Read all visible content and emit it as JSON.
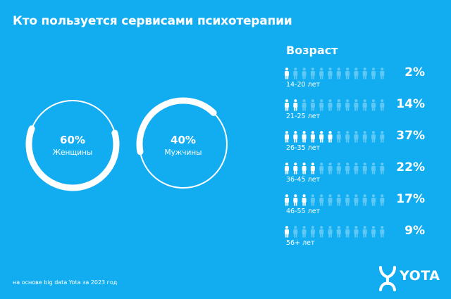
{
  "title": "Кто пользуется сервисами психотерапии",
  "colors": {
    "background": "#12adf0",
    "foreground": "#ffffff",
    "inactive_person": "#5fc8f5"
  },
  "footnote": "на основе big data Yota за 2023 год",
  "logo": {
    "text": "YOTA"
  },
  "age_title": "Возраст",
  "chart_data": [
    {
      "type": "pie",
      "categories": [
        "Женщины",
        "Мужчины"
      ],
      "values": [
        60,
        40
      ],
      "labels": [
        "60%",
        "40%"
      ]
    },
    {
      "type": "bar",
      "title": "Возраст",
      "categories": [
        "14-20 лет",
        "21-25 лет",
        "26-35 лет",
        "36-45 лет",
        "46-55 лет",
        "56+ лет"
      ],
      "values": [
        2,
        14,
        37,
        22,
        17,
        9
      ],
      "labels": [
        "2%",
        "14%",
        "37%",
        "22%",
        "17%",
        "9%"
      ],
      "highlighted_people_of_12": [
        1,
        2,
        6,
        4,
        3,
        1
      ]
    }
  ]
}
